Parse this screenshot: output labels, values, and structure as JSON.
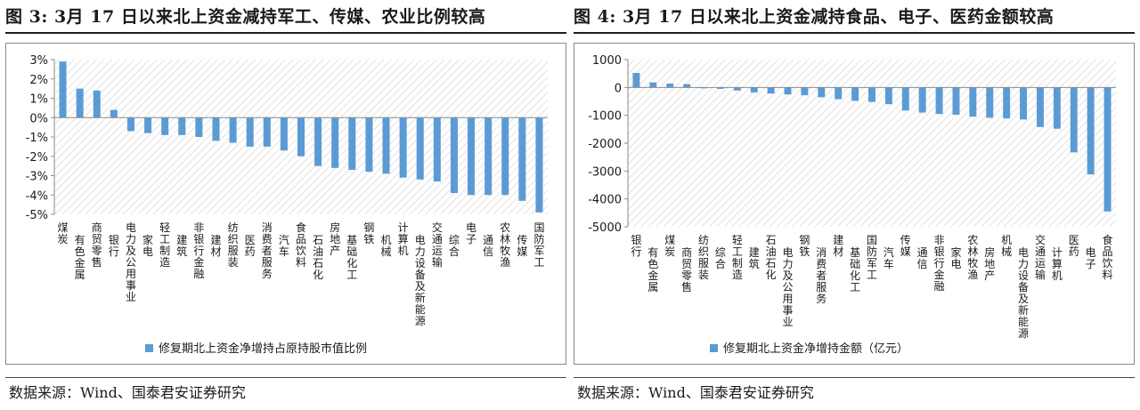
{
  "colors": {
    "bar": "#5b9bd5",
    "grid": "#d4d4d4",
    "axis": "#8a8a8a"
  },
  "figures": [
    {
      "title": "图 3: 3月 17 日以来北上资金减持军工、传媒、农业比例较高",
      "source": "数据来源：Wind、国泰君安证券研究",
      "legend_icon": "blue-square-icon"
    },
    {
      "title": "图 4: 3月 17 日以来北上资金减持食品、电子、医药金额较高",
      "source": "数据来源：Wind、国泰君安证券研究",
      "legend_icon": "blue-square-icon"
    }
  ],
  "chart_data": [
    {
      "type": "bar",
      "categories": [
        "煤炭",
        "有色金属",
        "商贸零售",
        "银行",
        "电力及公用事业",
        "家电",
        "轻工制造",
        "建筑",
        "非银行金融",
        "建材",
        "纺织服装",
        "医药",
        "消费者服务",
        "汽车",
        "食品饮料",
        "石油石化",
        "房地产",
        "基础化工",
        "钢铁",
        "机械",
        "计算机",
        "电力设备及新能源",
        "交通运输",
        "综合",
        "电子",
        "通信",
        "农林牧渔",
        "传媒",
        "国防军工"
      ],
      "series": [
        {
          "name": "修复期北上资金净增持占原持股市值比例",
          "values": [
            2.9,
            1.5,
            1.4,
            0.4,
            -0.7,
            -0.8,
            -0.9,
            -0.9,
            -1.0,
            -1.2,
            -1.3,
            -1.5,
            -1.5,
            -1.7,
            -2.0,
            -2.5,
            -2.6,
            -2.7,
            -2.8,
            -2.9,
            -3.1,
            -3.2,
            -3.3,
            -3.9,
            -4.0,
            -4.0,
            -4.0,
            -4.3,
            -4.9
          ]
        }
      ],
      "yticks": [
        "3%",
        "2%",
        "1%",
        "0%",
        "-1%",
        "-2%",
        "-3%",
        "-4%",
        "-5%"
      ],
      "ylim": [
        -5,
        3
      ],
      "grid": false,
      "legend_position": "bottom"
    },
    {
      "type": "bar",
      "categories": [
        "银行",
        "有色金属",
        "煤炭",
        "商贸零售",
        "纺织服装",
        "综合",
        "轻工制造",
        "建筑",
        "石油石化",
        "电力及公用事业",
        "钢铁",
        "消费者服务",
        "建材",
        "基础化工",
        "国防军工",
        "汽车",
        "传媒",
        "通信",
        "非银行金融",
        "家电",
        "农林牧渔",
        "房地产",
        "机械",
        "电力设备及新能源",
        "交通运输",
        "计算机",
        "医药",
        "电子",
        "食品饮料"
      ],
      "series": [
        {
          "name": "修复期北上资金净增持金额（亿元）",
          "values": [
            520,
            180,
            140,
            120,
            -30,
            -50,
            -110,
            -180,
            -220,
            -250,
            -280,
            -350,
            -420,
            -480,
            -520,
            -600,
            -830,
            -900,
            -950,
            -980,
            -1050,
            -1090,
            -1110,
            -1150,
            -1420,
            -1480,
            -2330,
            -3120,
            -4450
          ]
        }
      ],
      "yticks": [
        "1000",
        "0",
        "-1000",
        "-2000",
        "-3000",
        "-4000",
        "-5000"
      ],
      "ylim": [
        -5000,
        1000
      ],
      "grid": false,
      "legend_position": "bottom"
    }
  ]
}
